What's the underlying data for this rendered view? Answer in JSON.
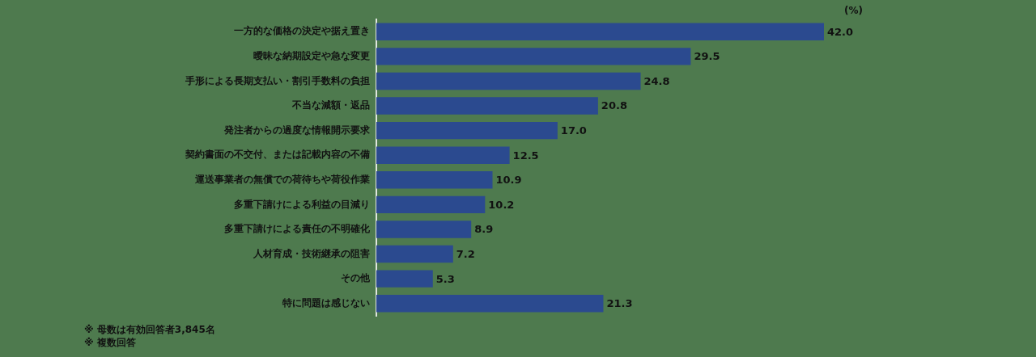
{
  "chart_data": {
    "type": "bar",
    "orientation": "horizontal",
    "xlabel": "(%)",
    "categories": [
      "一方的な価格の決定や据え置き",
      "曖昧な納期設定や急な変更",
      "手形による長期支払い・割引手数料の負担",
      "不当な減額・返品",
      "発注者からの過度な情報開示要求",
      "契約書面の不交付、または記載内容の不備",
      "運送事業者の無償での荷待ちや荷役作業",
      "多重下請けによる利益の目減り",
      "多重下請けによる責任の不明確化",
      "人材育成・技術継承の阻害",
      "その他",
      "特に問題は感じない"
    ],
    "values": [
      42.0,
      29.5,
      24.8,
      20.8,
      17.0,
      12.5,
      10.9,
      10.2,
      8.9,
      7.2,
      5.3,
      21.3
    ],
    "value_labels": [
      "42.0",
      "29.5",
      "24.8",
      "20.8",
      "17.0",
      "12.5",
      "10.9",
      "10.2",
      "8.9",
      "7.2",
      "5.3",
      "21.3"
    ],
    "color": "#2b4a8f",
    "legend": false,
    "annotations": [
      "※ 母数は有効回答者3,845名",
      "※ 複数回答"
    ]
  }
}
